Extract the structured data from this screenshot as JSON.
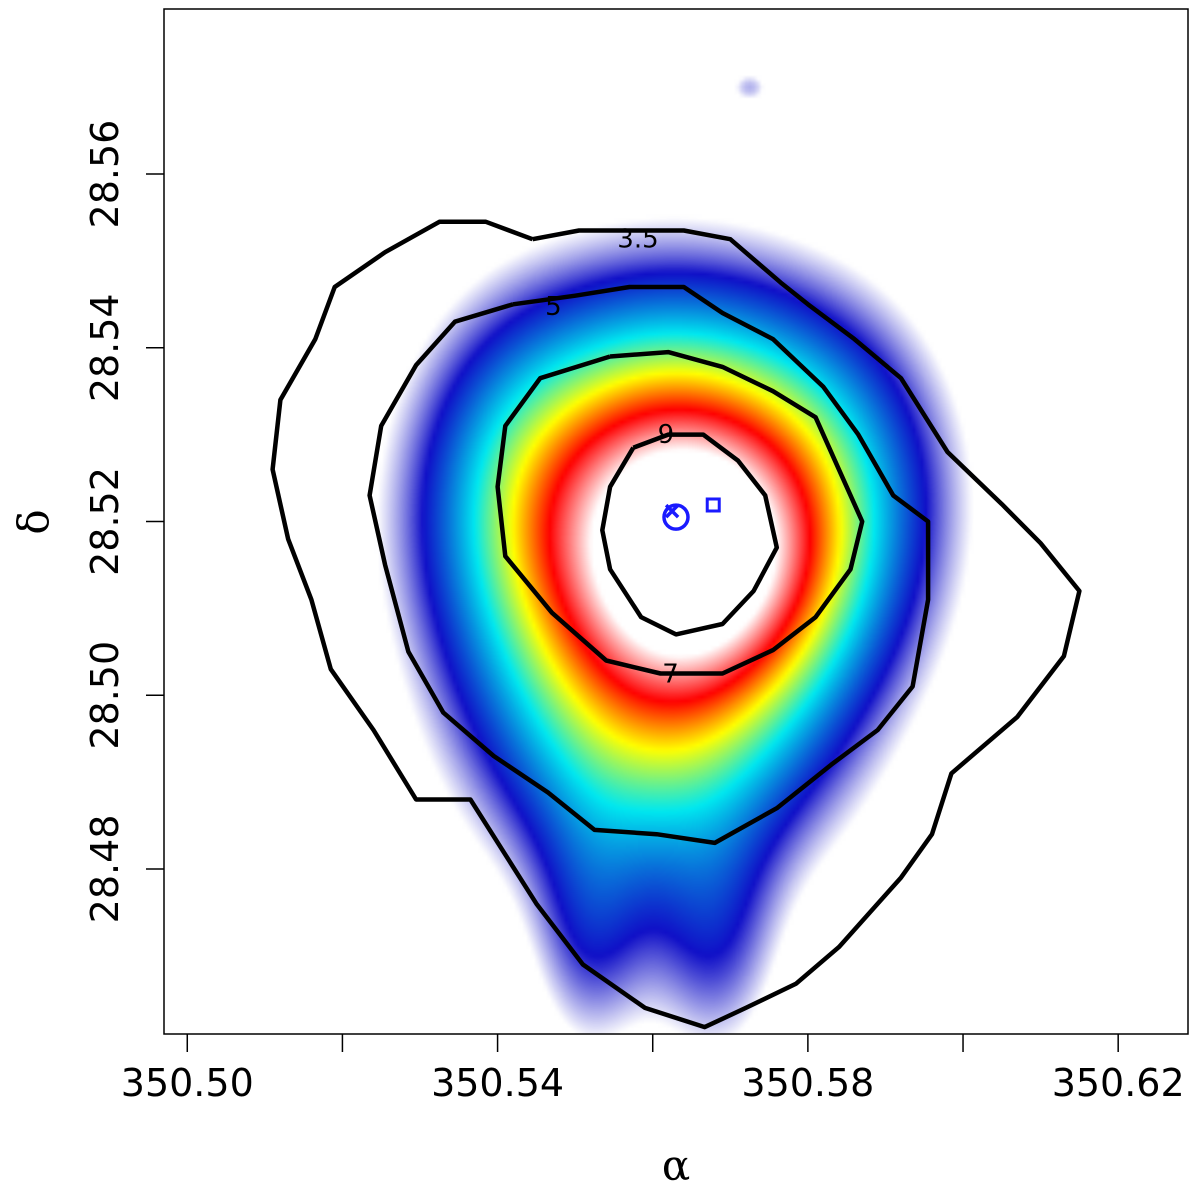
{
  "chart_data": {
    "type": "heatmap",
    "title": "",
    "xlabel": "α",
    "ylabel": "δ",
    "xlim": [
      350.497,
      350.629
    ],
    "ylim": [
      28.461,
      28.579
    ],
    "x_ticks": [
      350.5,
      350.52,
      350.54,
      350.56,
      350.58,
      350.6,
      350.62
    ],
    "x_tick_labels": [
      "350.50",
      "",
      "350.54",
      "",
      "350.58",
      "",
      "350.62"
    ],
    "y_ticks": [
      28.48,
      28.5,
      28.52,
      28.54,
      28.56
    ],
    "y_tick_labels": [
      "28.48",
      "28.50",
      "28.52",
      "28.54",
      "28.56"
    ],
    "grid": false,
    "colormap": [
      "#ffffff",
      "#1010c8",
      "#00e8f0",
      "#ffff00",
      "#ff0000",
      "#ffffff"
    ],
    "density_blobs": [
      {
        "x": 350.5625,
        "y": 28.5202,
        "sx": 0.0175,
        "sy": 0.0165,
        "amp": 1.0
      },
      {
        "x": 350.5685,
        "y": 28.5138,
        "sx": 0.0105,
        "sy": 0.0095,
        "amp": 0.22
      },
      {
        "x": 350.56,
        "y": 28.4935,
        "sx": 0.0155,
        "sy": 0.0135,
        "amp": 0.32
      },
      {
        "x": 350.552,
        "y": 28.471,
        "sx": 0.0055,
        "sy": 0.0105,
        "amp": 0.16
      },
      {
        "x": 350.568,
        "y": 28.47,
        "sx": 0.006,
        "sy": 0.0105,
        "amp": 0.16
      },
      {
        "x": 350.5725,
        "y": 28.57,
        "sx": 0.0021,
        "sy": 0.0016,
        "amp": 0.14
      },
      {
        "x": 350.541,
        "y": 28.525,
        "sx": 0.0085,
        "sy": 0.014,
        "amp": 0.09
      },
      {
        "x": 350.585,
        "y": 28.527,
        "sx": 0.01,
        "sy": 0.0135,
        "amp": 0.09
      }
    ],
    "contours": [
      {
        "level": "3.5",
        "label_pos": [
          350.5581,
          28.5526
        ],
        "points": [
          [
            350.5445,
            28.5525
          ],
          [
            350.5505,
            28.5535
          ],
          [
            350.5555,
            28.5535
          ],
          [
            350.564,
            28.5535
          ],
          [
            350.57,
            28.5525
          ],
          [
            350.5765,
            28.5475
          ],
          [
            350.58,
            28.545
          ],
          [
            350.586,
            28.541
          ],
          [
            350.592,
            28.5365
          ],
          [
            350.598,
            28.528
          ],
          [
            350.605,
            28.522
          ],
          [
            350.61,
            28.5175
          ],
          [
            350.615,
            28.512
          ],
          [
            350.613,
            28.5045
          ],
          [
            350.607,
            28.4975
          ],
          [
            350.5985,
            28.491
          ],
          [
            350.596,
            28.484
          ],
          [
            350.592,
            28.479
          ],
          [
            350.584,
            28.471
          ],
          [
            350.5785,
            28.4668
          ],
          [
            350.572,
            28.464
          ],
          [
            350.5667,
            28.4618
          ],
          [
            350.559,
            28.464
          ],
          [
            350.551,
            28.469
          ],
          [
            350.545,
            28.476
          ],
          [
            350.5365,
            28.488
          ],
          [
            350.5295,
            28.488
          ],
          [
            350.524,
            28.496
          ],
          [
            350.5185,
            28.503
          ],
          [
            350.516,
            28.511
          ],
          [
            350.513,
            28.518
          ],
          [
            350.511,
            28.526
          ],
          [
            350.512,
            28.534
          ],
          [
            350.5165,
            28.541
          ],
          [
            350.519,
            28.547
          ],
          [
            350.5255,
            28.551
          ],
          [
            350.5325,
            28.5545
          ],
          [
            350.5385,
            28.5545
          ],
          [
            350.5445,
            28.5525
          ]
        ]
      },
      {
        "level": "5",
        "label_pos": [
          350.5472,
          28.5448
        ],
        "points": [
          [
            350.542,
            28.545
          ],
          [
            350.55,
            28.546
          ],
          [
            350.557,
            28.547
          ],
          [
            350.564,
            28.547
          ],
          [
            350.569,
            28.544
          ],
          [
            350.5755,
            28.541
          ],
          [
            350.582,
            28.5355
          ],
          [
            350.5865,
            28.53
          ],
          [
            350.591,
            28.523
          ],
          [
            350.5955,
            28.52
          ],
          [
            350.5955,
            28.511
          ],
          [
            350.5935,
            28.501
          ],
          [
            350.589,
            28.496
          ],
          [
            350.583,
            28.492
          ],
          [
            350.576,
            28.487
          ],
          [
            350.568,
            28.483
          ],
          [
            350.5605,
            28.484
          ],
          [
            350.5525,
            28.4845
          ],
          [
            350.5465,
            28.4888
          ],
          [
            350.5395,
            28.493
          ],
          [
            350.533,
            28.498
          ],
          [
            350.5285,
            28.505
          ],
          [
            350.5255,
            28.515
          ],
          [
            350.5235,
            28.523
          ],
          [
            350.525,
            28.531
          ],
          [
            350.5295,
            28.538
          ],
          [
            350.5345,
            28.543
          ],
          [
            350.542,
            28.545
          ]
        ]
      },
      {
        "level": "7",
        "label_pos": [
          350.5623,
          28.5025
        ],
        "points": [
          [
            350.5545,
            28.539
          ],
          [
            350.562,
            28.5395
          ],
          [
            350.569,
            28.5378
          ],
          [
            350.5755,
            28.535
          ],
          [
            350.581,
            28.532
          ],
          [
            350.584,
            28.526
          ],
          [
            350.587,
            28.52
          ],
          [
            350.5855,
            28.5145
          ],
          [
            350.581,
            28.509
          ],
          [
            350.5755,
            28.5052
          ],
          [
            350.569,
            28.5025
          ],
          [
            350.561,
            28.5025
          ],
          [
            350.554,
            28.504
          ],
          [
            350.547,
            28.5095
          ],
          [
            350.541,
            28.516
          ],
          [
            350.54,
            28.524
          ],
          [
            350.541,
            28.531
          ],
          [
            350.5455,
            28.5365
          ],
          [
            350.5545,
            28.539
          ]
        ]
      },
      {
        "level": "9",
        "label_pos": [
          350.5617,
          28.5301
        ],
        "points": [
          [
            350.5575,
            28.5285
          ],
          [
            350.562,
            28.53
          ],
          [
            350.5665,
            28.53
          ],
          [
            350.571,
            28.527
          ],
          [
            350.5745,
            28.523
          ],
          [
            350.576,
            28.517
          ],
          [
            350.573,
            28.512
          ],
          [
            350.569,
            28.5082
          ],
          [
            350.563,
            28.507
          ],
          [
            350.5585,
            28.509
          ],
          [
            350.5545,
            28.5145
          ],
          [
            350.5535,
            28.519
          ],
          [
            350.5545,
            28.524
          ],
          [
            350.5575,
            28.5285
          ]
        ]
      }
    ],
    "markers": [
      {
        "shape": "circle",
        "x": 350.563,
        "y": 28.5205
      },
      {
        "shape": "cross",
        "x": 350.5625,
        "y": 28.5212
      },
      {
        "shape": "square",
        "x": 350.5678,
        "y": 28.5219
      }
    ]
  }
}
